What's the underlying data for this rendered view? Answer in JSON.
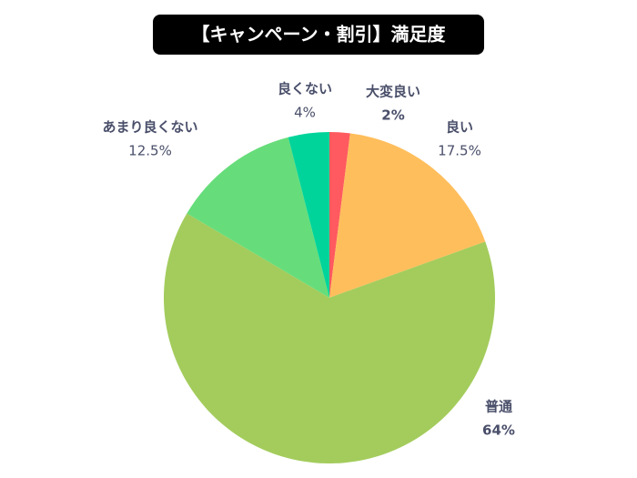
{
  "chart_data": {
    "type": "pie",
    "title": "【キャンペーン・割引】満足度",
    "categories": [
      "大変良い",
      "良い",
      "普通",
      "あまり良くない",
      "良くない"
    ],
    "values": [
      2,
      17.5,
      64,
      12.5,
      4
    ],
    "value_labels": [
      "2%",
      "17.5%",
      "64%",
      "12.5%",
      "4%"
    ],
    "colors": [
      "#ff5a5f",
      "#ffbe5c",
      "#a3cc5c",
      "#66dd7a",
      "#00d49a"
    ]
  }
}
